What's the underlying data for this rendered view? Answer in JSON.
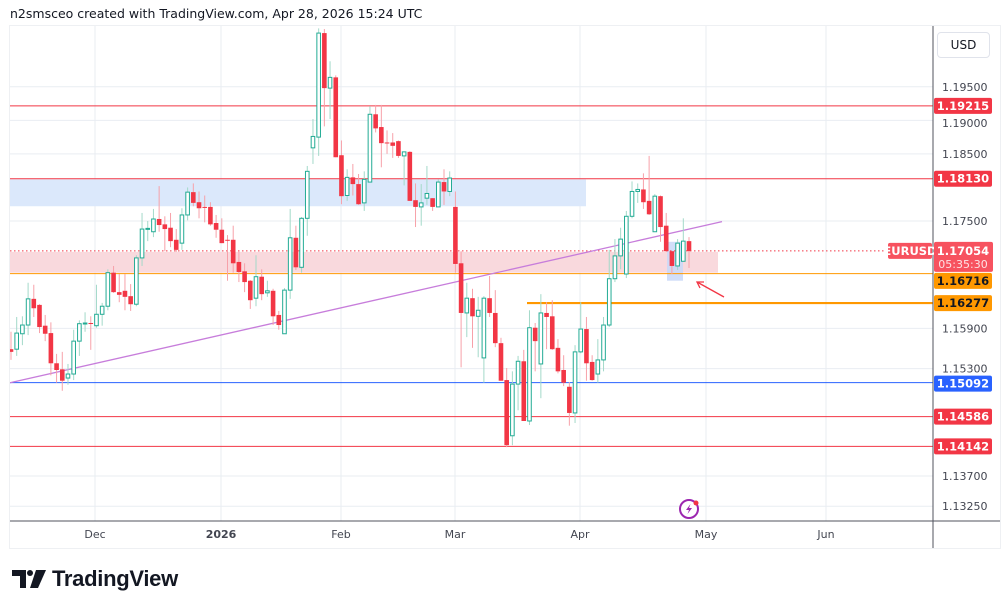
{
  "header": {
    "attribution": "n2smsceo created with TradingView.com, Apr 28, 2026 15:24 UTC"
  },
  "currency_button": "USD",
  "logo": {
    "text": "TradingView"
  },
  "symbol": "EURUSD",
  "countdown": "05:35:30",
  "colors": {
    "up": "#22ab94",
    "down": "#f23645",
    "up_wick": "#a3d9c9",
    "down_wick": "#f7a1a9",
    "orange": "#ff9800",
    "blue": "#2962ff",
    "trend": "#c77ddb",
    "grid": "#e9edf2"
  },
  "chart_data": {
    "type": "candlestick",
    "title": "EURUSD",
    "y_ticks": [
      "1.19500",
      "1.19000",
      "1.18500",
      "1.17500",
      "1.15900",
      "1.15300",
      "1.13700",
      "1.13250"
    ],
    "x_ticks": [
      "Dec",
      "2026",
      "Feb",
      "Mar",
      "Apr",
      "May",
      "Jun"
    ],
    "ylim": [
      1.1325,
      1.205
    ],
    "current_price": "1.17054",
    "levels": [
      {
        "price": "1.19215",
        "color": "#f23645",
        "style": "thin"
      },
      {
        "price": "1.18130",
        "color": "#f23645",
        "style": "thin"
      },
      {
        "price": "1.16716",
        "color": "#ff9800",
        "style": "thin"
      },
      {
        "price": "1.16277",
        "color": "#ff9800",
        "style": "thick"
      },
      {
        "price": "1.15092",
        "color": "#2962ff",
        "style": "thin"
      },
      {
        "price": "1.14586",
        "color": "#f23645",
        "style": "thin"
      },
      {
        "price": "1.14142",
        "color": "#f23645",
        "style": "thin"
      }
    ],
    "zones": [
      {
        "name": "supply-zone",
        "top": 1.1812,
        "bottom": 1.1772,
        "color": "#dbe8fb"
      },
      {
        "name": "current-zone",
        "top": 1.1704,
        "bottom": 1.1673,
        "color": "#f9d9dd"
      },
      {
        "name": "highlight-box",
        "top": 1.1719,
        "bottom": 1.1661,
        "color": "#c9d8f8"
      }
    ],
    "trendline": {
      "start_price": 1.1509,
      "end_price": 1.1749
    },
    "candles": [
      [
        1.1559,
        1.1585,
        1.1543,
        1.1555
      ],
      [
        1.1559,
        1.1607,
        1.1549,
        1.1583
      ],
      [
        1.1582,
        1.1608,
        1.1565,
        1.1595
      ],
      [
        1.1595,
        1.1658,
        1.158,
        1.1634
      ],
      [
        1.1634,
        1.1655,
        1.1607,
        1.162
      ],
      [
        1.1625,
        1.1626,
        1.1583,
        1.1592
      ],
      [
        1.1594,
        1.161,
        1.1571,
        1.1582
      ],
      [
        1.1583,
        1.1599,
        1.152,
        1.1538
      ],
      [
        1.1538,
        1.1552,
        1.1509,
        1.1528
      ],
      [
        1.1529,
        1.1555,
        1.1497,
        1.1512
      ],
      [
        1.1516,
        1.1537,
        1.1506,
        1.1522
      ],
      [
        1.1522,
        1.1588,
        1.1513,
        1.1571
      ],
      [
        1.1571,
        1.1602,
        1.1549,
        1.1597
      ],
      [
        1.1597,
        1.1614,
        1.1585,
        1.1598
      ],
      [
        1.1598,
        1.1608,
        1.1558,
        1.1597
      ],
      [
        1.1594,
        1.1655,
        1.1591,
        1.1611
      ],
      [
        1.1611,
        1.1628,
        1.1594,
        1.1623
      ],
      [
        1.1623,
        1.1678,
        1.1617,
        1.1673
      ],
      [
        1.1673,
        1.1683,
        1.1643,
        1.1644
      ],
      [
        1.1644,
        1.1671,
        1.1629,
        1.164
      ],
      [
        1.1646,
        1.1671,
        1.1617,
        1.1637
      ],
      [
        1.1638,
        1.1656,
        1.1616,
        1.1626
      ],
      [
        1.1626,
        1.1699,
        1.1623,
        1.1695
      ],
      [
        1.1695,
        1.1762,
        1.1683,
        1.1738
      ],
      [
        1.1738,
        1.175,
        1.172,
        1.1739
      ],
      [
        1.1734,
        1.1768,
        1.1726,
        1.1753
      ],
      [
        1.1753,
        1.1802,
        1.1734,
        1.1744
      ],
      [
        1.1745,
        1.1757,
        1.1705,
        1.1738
      ],
      [
        1.174,
        1.1762,
        1.1711,
        1.172
      ],
      [
        1.1722,
        1.1738,
        1.1704,
        1.1707
      ],
      [
        1.1717,
        1.1769,
        1.1707,
        1.1759
      ],
      [
        1.1759,
        1.18,
        1.1751,
        1.1793
      ],
      [
        1.1793,
        1.1806,
        1.1772,
        1.1777
      ],
      [
        1.1778,
        1.1794,
        1.1754,
        1.1769
      ],
      [
        1.1771,
        1.1788,
        1.1748,
        1.177
      ],
      [
        1.1771,
        1.1778,
        1.1743,
        1.1745
      ],
      [
        1.1747,
        1.1759,
        1.1725,
        1.1737
      ],
      [
        1.1737,
        1.1754,
        1.1717,
        1.1717
      ],
      [
        1.1722,
        1.1729,
        1.1661,
        1.1721
      ],
      [
        1.1722,
        1.1743,
        1.1673,
        1.1687
      ],
      [
        1.1689,
        1.1705,
        1.1659,
        1.1674
      ],
      [
        1.1675,
        1.1687,
        1.1644,
        1.1659
      ],
      [
        1.1661,
        1.1662,
        1.1619,
        1.1632
      ],
      [
        1.1635,
        1.1699,
        1.1623,
        1.1667
      ],
      [
        1.1667,
        1.1678,
        1.1632,
        1.1641
      ],
      [
        1.1643,
        1.1661,
        1.1637,
        1.1646
      ],
      [
        1.1646,
        1.1649,
        1.1595,
        1.1608
      ],
      [
        1.161,
        1.1616,
        1.1588,
        1.1595
      ],
      [
        1.1582,
        1.165,
        1.1582,
        1.1647
      ],
      [
        1.1647,
        1.1768,
        1.1634,
        1.1725
      ],
      [
        1.1725,
        1.1743,
        1.1677,
        1.1681
      ],
      [
        1.1681,
        1.1756,
        1.1673,
        1.1754
      ],
      [
        1.1754,
        1.1832,
        1.1728,
        1.1824
      ],
      [
        1.1859,
        1.1902,
        1.1835,
        1.1876
      ],
      [
        1.1875,
        1.2037,
        1.1847,
        1.203
      ],
      [
        1.203,
        1.2036,
        1.1891,
        1.1948
      ],
      [
        1.1948,
        1.1988,
        1.1902,
        1.1964
      ],
      [
        1.1964,
        1.1967,
        1.1845,
        1.1845
      ],
      [
        1.1848,
        1.187,
        1.1775,
        1.1787
      ],
      [
        1.1788,
        1.1827,
        1.178,
        1.1815
      ],
      [
        1.1815,
        1.1835,
        1.1788,
        1.1805
      ],
      [
        1.1805,
        1.182,
        1.1774,
        1.1775
      ],
      [
        1.1777,
        1.1824,
        1.1765,
        1.1812
      ],
      [
        1.1808,
        1.1921,
        1.1808,
        1.1909
      ],
      [
        1.1909,
        1.1923,
        1.1882,
        1.1888
      ],
      [
        1.189,
        1.1923,
        1.183,
        1.1866
      ],
      [
        1.1867,
        1.1885,
        1.185,
        1.1866
      ],
      [
        1.1867,
        1.1881,
        1.1844,
        1.1862
      ],
      [
        1.1869,
        1.187,
        1.1844,
        1.1847
      ],
      [
        1.1847,
        1.1853,
        1.1803,
        1.1853
      ],
      [
        1.1853,
        1.1854,
        1.178,
        1.178
      ],
      [
        1.1781,
        1.1806,
        1.1741,
        1.1771
      ],
      [
        1.1771,
        1.1805,
        1.1743,
        1.1777
      ],
      [
        1.1784,
        1.1832,
        1.1774,
        1.1791
      ],
      [
        1.1784,
        1.1784,
        1.1765,
        1.1771
      ],
      [
        1.1771,
        1.1812,
        1.1771,
        1.1808
      ],
      [
        1.1808,
        1.1827,
        1.1774,
        1.1794
      ],
      [
        1.1794,
        1.1824,
        1.1787,
        1.1814
      ],
      [
        1.1771,
        1.1794,
        1.1673,
        1.1686
      ],
      [
        1.1687,
        1.1705,
        1.1532,
        1.1613
      ],
      [
        1.1613,
        1.1658,
        1.1577,
        1.1635
      ],
      [
        1.1635,
        1.1649,
        1.1561,
        1.1608
      ],
      [
        1.1608,
        1.1637,
        1.1547,
        1.1617
      ],
      [
        1.1546,
        1.1638,
        1.1509,
        1.1635
      ],
      [
        1.1635,
        1.1668,
        1.1607,
        1.1613
      ],
      [
        1.1613,
        1.1647,
        1.1562,
        1.1568
      ],
      [
        1.1568,
        1.1576,
        1.1512,
        1.1512
      ],
      [
        1.1513,
        1.1531,
        1.1413,
        1.1416
      ],
      [
        1.143,
        1.1526,
        1.1416,
        1.1507
      ],
      [
        1.1507,
        1.1549,
        1.1468,
        1.1541
      ],
      [
        1.1541,
        1.1558,
        1.1452,
        1.1452
      ],
      [
        1.1452,
        1.1617,
        1.1446,
        1.1591
      ],
      [
        1.1591,
        1.1598,
        1.1526,
        1.1571
      ],
      [
        1.1537,
        1.1641,
        1.1486,
        1.1613
      ],
      [
        1.1613,
        1.1629,
        1.1559,
        1.1607
      ],
      [
        1.1608,
        1.1632,
        1.1558,
        1.1559
      ],
      [
        1.1561,
        1.1574,
        1.1523,
        1.1526
      ],
      [
        1.1528,
        1.155,
        1.1504,
        1.1509
      ],
      [
        1.1503,
        1.151,
        1.1445,
        1.1464
      ],
      [
        1.1464,
        1.1565,
        1.1449,
        1.1555
      ],
      [
        1.1555,
        1.1629,
        1.1553,
        1.1589
      ],
      [
        1.1589,
        1.1607,
        1.1512,
        1.1538
      ],
      [
        1.154,
        1.155,
        1.1512,
        1.1513
      ],
      [
        1.1522,
        1.1574,
        1.1509,
        1.1543
      ],
      [
        1.1543,
        1.1607,
        1.1526,
        1.1595
      ],
      [
        1.1595,
        1.1707,
        1.1592,
        1.1664
      ],
      [
        1.1664,
        1.1723,
        1.1659,
        1.1698
      ],
      [
        1.1698,
        1.174,
        1.1678,
        1.1723
      ],
      [
        1.1671,
        1.1765,
        1.1665,
        1.1757
      ],
      [
        1.1757,
        1.1809,
        1.1754,
        1.1794
      ],
      [
        1.1794,
        1.1806,
        1.1777,
        1.1797
      ],
      [
        1.1797,
        1.1821,
        1.1768,
        1.1778
      ],
      [
        1.178,
        1.1847,
        1.1759,
        1.176
      ],
      [
        1.1734,
        1.179,
        1.1734,
        1.1787
      ],
      [
        1.1787,
        1.1788,
        1.1719,
        1.1741
      ],
      [
        1.1743,
        1.1762,
        1.1704,
        1.1705
      ],
      [
        1.1705,
        1.1705,
        1.1671,
        1.1683
      ],
      [
        1.1683,
        1.1723,
        1.1677,
        1.1717
      ],
      [
        1.169,
        1.1754,
        1.169,
        1.172
      ],
      [
        1.172,
        1.1726,
        1.168,
        1.1705
      ]
    ]
  }
}
